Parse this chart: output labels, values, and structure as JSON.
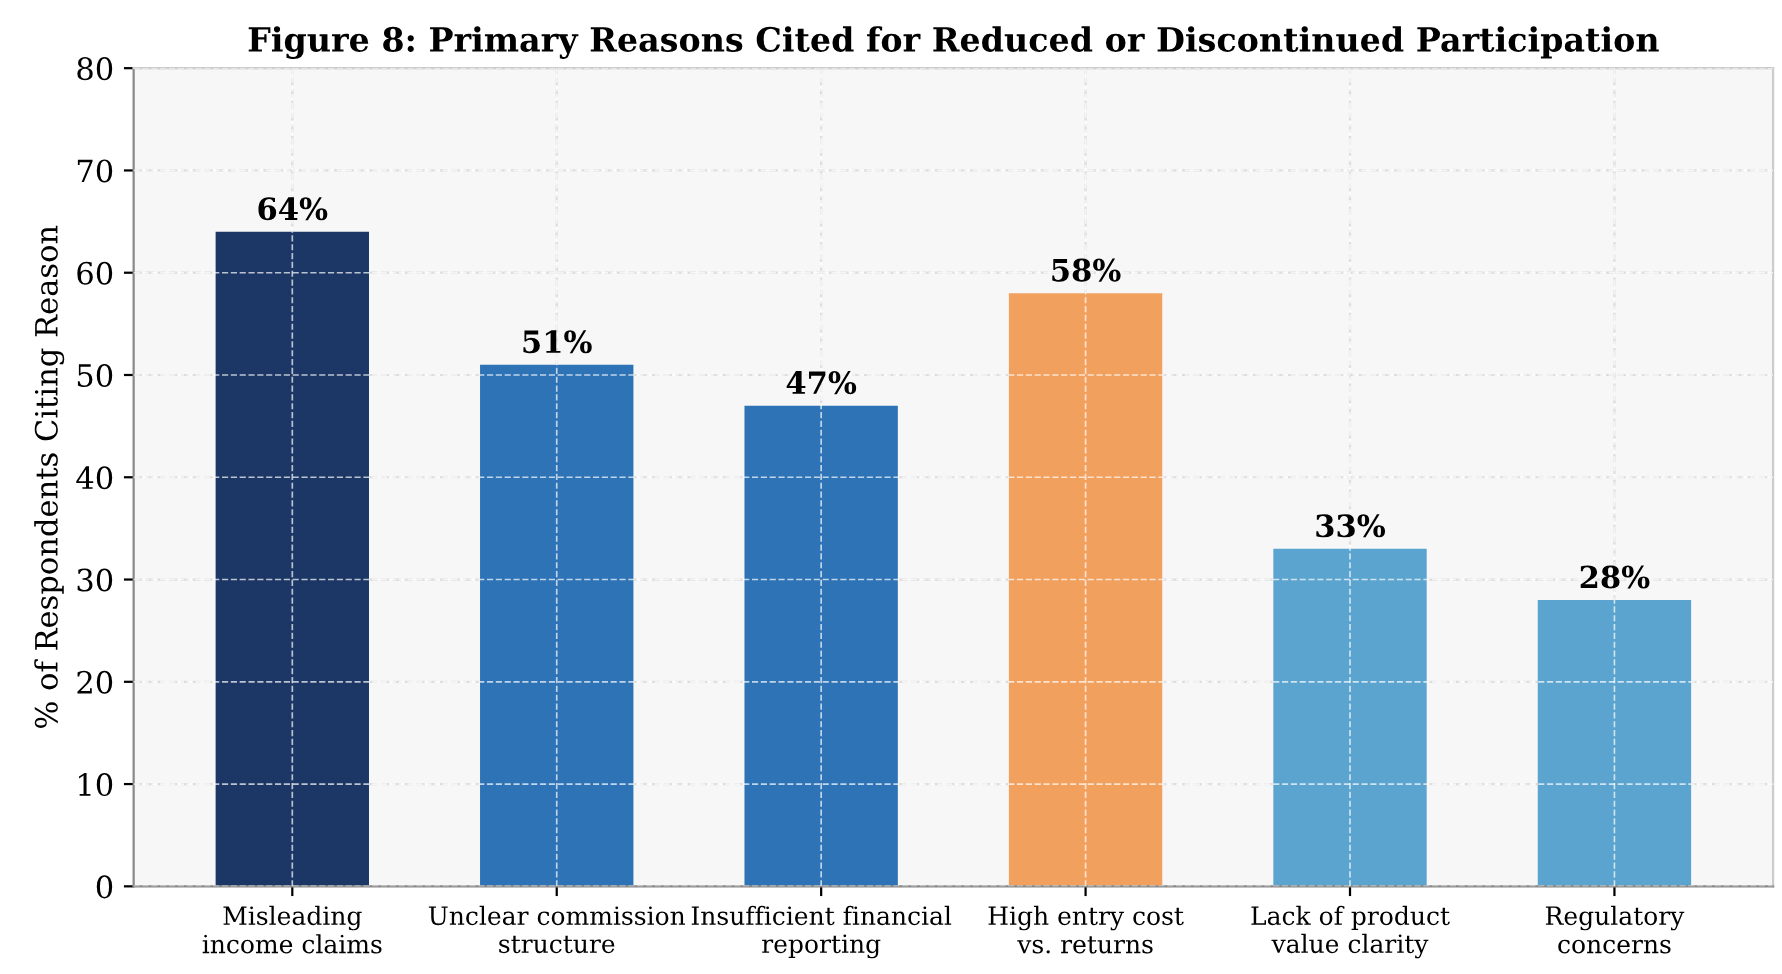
{
  "chart_data": {
    "type": "bar",
    "title": "Figure 8: Primary Reasons Cited for Reduced or Discontinued Participation",
    "ylabel": "% of Respondents Citing Reason",
    "categories": [
      "Misleading\nincome claims",
      "Unclear commission\nstructure",
      "Insufficient financial\nreporting",
      "High entry cost\nvs. returns",
      "Lack of product\nvalue clarity",
      "Regulatory\nconcerns"
    ],
    "values": [
      64,
      51,
      47,
      58,
      33,
      28
    ],
    "colors": [
      "#1c3766",
      "#2e73b5",
      "#2e73b5",
      "#f2a05e",
      "#5ba4d0",
      "#5ba4d0"
    ],
    "value_labels": [
      "64%",
      "51%",
      "47%",
      "58%",
      "33%",
      "28%"
    ],
    "ylim": [
      0,
      80
    ],
    "yticks": [
      0,
      10,
      20,
      30,
      40,
      50,
      60,
      70,
      80
    ],
    "grid": true
  }
}
